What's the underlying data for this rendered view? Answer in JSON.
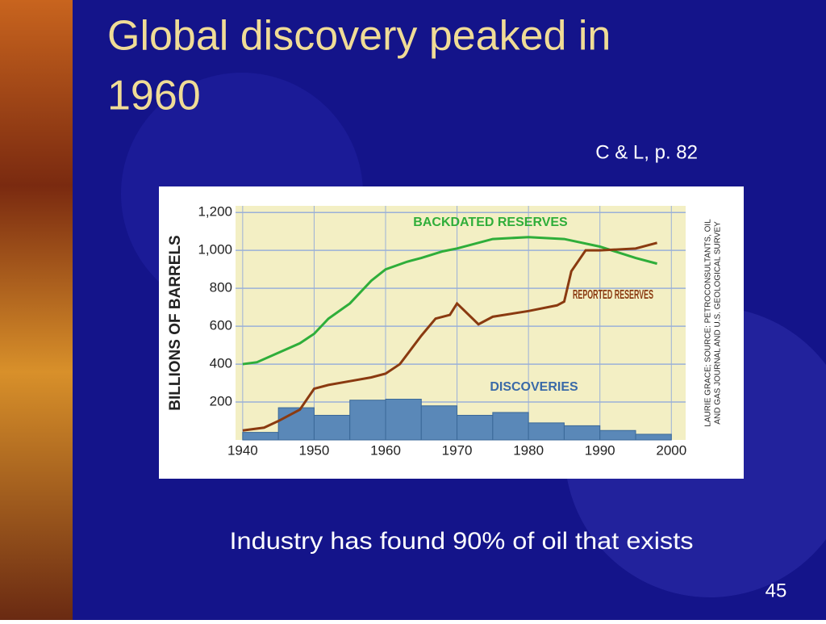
{
  "slide": {
    "title_lines": [
      "Global discovery peaked in",
      "1960"
    ],
    "citation": "C & L, p. 82",
    "caption": "Industry has found 90% of oil that exists",
    "page_number": "45"
  },
  "chart_data": {
    "type": "line",
    "ylabel": "BILLIONS OF BARRELS",
    "source_lines": [
      "LAURIE GRACE; SOURCE: PETROCONSULTANTS, OIL",
      "AND GAS JOURNAL AND U.S. GEOLOGICAL SURVEY"
    ],
    "xlim": [
      1939,
      2002
    ],
    "xticks": [
      1940,
      1950,
      1960,
      1970,
      1980,
      1990,
      2000
    ],
    "ylim": [
      0,
      1235
    ],
    "yticks": [
      200,
      400,
      600,
      800,
      {
        "value": 1000,
        "label": "1,000"
      },
      {
        "value": 1200,
        "label": "1,200"
      }
    ],
    "grid": true,
    "series": [
      {
        "name": "BACKDATED RESERVES",
        "color": "#2fae3a",
        "x": [
          1940,
          1942,
          1945,
          1948,
          1950,
          1952,
          1955,
          1958,
          1960,
          1963,
          1965,
          1968,
          1970,
          1975,
          1980,
          1985,
          1990,
          1995,
          1998
        ],
        "values": [
          400,
          410,
          460,
          510,
          560,
          640,
          720,
          840,
          900,
          940,
          960,
          995,
          1010,
          1060,
          1070,
          1060,
          1020,
          960,
          930
        ]
      },
      {
        "name": "REPORTED RESERVES",
        "color": "#8a3a10",
        "x": [
          1940,
          1943,
          1945,
          1948,
          1950,
          1952,
          1955,
          1958,
          1960,
          1962,
          1965,
          1967,
          1969,
          1970,
          1973,
          1975,
          1980,
          1984,
          1985,
          1986,
          1988,
          1990,
          1995,
          1998
        ],
        "values": [
          50,
          65,
          100,
          160,
          270,
          290,
          310,
          330,
          350,
          400,
          550,
          640,
          660,
          720,
          610,
          650,
          680,
          710,
          730,
          890,
          1000,
          1000,
          1010,
          1040
        ]
      }
    ],
    "discoveries": {
      "name": "DISCOVERIES",
      "color": "#5a88b8",
      "bins": [
        1940,
        1945,
        1950,
        1955,
        1960,
        1965,
        1970,
        1975,
        1980,
        1985,
        1990,
        1995,
        2000
      ],
      "values": [
        40,
        170,
        130,
        210,
        215,
        180,
        130,
        145,
        90,
        75,
        50,
        30
      ]
    }
  }
}
